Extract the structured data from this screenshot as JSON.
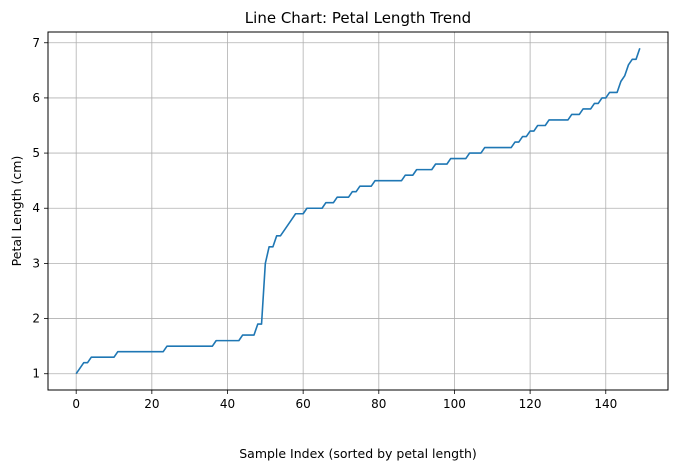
{
  "chart_data": {
    "type": "line",
    "title": "Line Chart: Petal Length Trend",
    "xlabel": "Sample Index (sorted by petal length)",
    "ylabel": "Petal Length (cm)",
    "xlim": [
      -7.45,
      156.45
    ],
    "ylim": [
      0.705,
      7.195
    ],
    "xticks": [
      0,
      20,
      40,
      60,
      80,
      100,
      120,
      140
    ],
    "yticks": [
      1,
      2,
      3,
      4,
      5,
      6,
      7
    ],
    "grid": true,
    "line_color": "#1f77b4",
    "series": [
      {
        "x": [
          0,
          1,
          2,
          3,
          4,
          5,
          6,
          7,
          8,
          9,
          10,
          11,
          12,
          13,
          14,
          15,
          16,
          17,
          18,
          19,
          20,
          21,
          22,
          23,
          24,
          25,
          26,
          27,
          28,
          29,
          30,
          31,
          32,
          33,
          34,
          35,
          36,
          37,
          38,
          39,
          40,
          41,
          42,
          43,
          44,
          45,
          46,
          47,
          48,
          49,
          50,
          51,
          52,
          53,
          54,
          55,
          56,
          57,
          58,
          59,
          60,
          61,
          62,
          63,
          64,
          65,
          66,
          67,
          68,
          69,
          70,
          71,
          72,
          73,
          74,
          75,
          76,
          77,
          78,
          79,
          80,
          81,
          82,
          83,
          84,
          85,
          86,
          87,
          88,
          89,
          90,
          91,
          92,
          93,
          94,
          95,
          96,
          97,
          98,
          99,
          100,
          101,
          102,
          103,
          104,
          105,
          106,
          107,
          108,
          109,
          110,
          111,
          112,
          113,
          114,
          115,
          116,
          117,
          118,
          119,
          120,
          121,
          122,
          123,
          124,
          125,
          126,
          127,
          128,
          129,
          130,
          131,
          132,
          133,
          134,
          135,
          136,
          137,
          138,
          139,
          140,
          141,
          142,
          143,
          144,
          145,
          146,
          147,
          148,
          149
        ],
        "values": [
          1.0,
          1.1,
          1.2,
          1.2,
          1.3,
          1.3,
          1.3,
          1.3,
          1.3,
          1.3,
          1.3,
          1.4,
          1.4,
          1.4,
          1.4,
          1.4,
          1.4,
          1.4,
          1.4,
          1.4,
          1.4,
          1.4,
          1.4,
          1.4,
          1.5,
          1.5,
          1.5,
          1.5,
          1.5,
          1.5,
          1.5,
          1.5,
          1.5,
          1.5,
          1.5,
          1.5,
          1.5,
          1.6,
          1.6,
          1.6,
          1.6,
          1.6,
          1.6,
          1.6,
          1.7,
          1.7,
          1.7,
          1.7,
          1.9,
          1.9,
          3.0,
          3.3,
          3.3,
          3.5,
          3.5,
          3.6,
          3.7,
          3.8,
          3.9,
          3.9,
          3.9,
          4.0,
          4.0,
          4.0,
          4.0,
          4.0,
          4.1,
          4.1,
          4.1,
          4.2,
          4.2,
          4.2,
          4.2,
          4.3,
          4.3,
          4.4,
          4.4,
          4.4,
          4.4,
          4.5,
          4.5,
          4.5,
          4.5,
          4.5,
          4.5,
          4.5,
          4.5,
          4.6,
          4.6,
          4.6,
          4.7,
          4.7,
          4.7,
          4.7,
          4.7,
          4.8,
          4.8,
          4.8,
          4.8,
          4.9,
          4.9,
          4.9,
          4.9,
          4.9,
          5.0,
          5.0,
          5.0,
          5.0,
          5.1,
          5.1,
          5.1,
          5.1,
          5.1,
          5.1,
          5.1,
          5.1,
          5.2,
          5.2,
          5.3,
          5.3,
          5.4,
          5.4,
          5.5,
          5.5,
          5.5,
          5.6,
          5.6,
          5.6,
          5.6,
          5.6,
          5.6,
          5.7,
          5.7,
          5.7,
          5.8,
          5.8,
          5.8,
          5.9,
          5.9,
          6.0,
          6.0,
          6.1,
          6.1,
          6.1,
          6.3,
          6.4,
          6.6,
          6.7,
          6.7,
          6.9
        ]
      }
    ]
  }
}
